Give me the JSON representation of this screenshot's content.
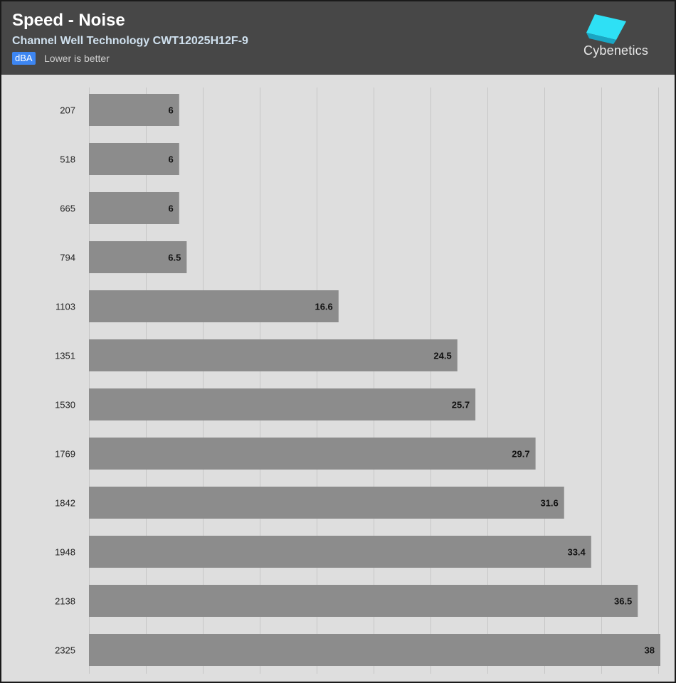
{
  "header": {
    "title": "Speed - Noise",
    "subtitle": "Channel Well Technology CWT12025H12F-9",
    "unit_badge": "dBA",
    "note": "Lower is better",
    "logo_text": "Cybenetics",
    "logo_icon": "cybenetics-logo-icon"
  },
  "colors": {
    "header_bg": "#474747",
    "plot_bg": "#dedede",
    "bar": "#8c8c8c",
    "badge": "#3d86f2",
    "logo_accent": "#2ee0f5"
  },
  "chart_data": {
    "type": "bar",
    "orientation": "horizontal",
    "title": "Speed - Noise",
    "subtitle": "Channel Well Technology CWT12025H12F-9",
    "unit": "dBA",
    "categories": [
      "207",
      "518",
      "665",
      "794",
      "1103",
      "1351",
      "1530",
      "1769",
      "1842",
      "1948",
      "2138",
      "2325"
    ],
    "values": [
      6,
      6,
      6,
      6.5,
      16.6,
      24.5,
      25.7,
      29.7,
      31.6,
      33.4,
      36.5,
      38
    ],
    "value_labels": [
      "6",
      "6",
      "6",
      "6.5",
      "16.6",
      "24.5",
      "25.7",
      "29.7",
      "31.6",
      "33.4",
      "36.5",
      "38"
    ],
    "xlim": [
      0,
      38
    ],
    "grid": true
  }
}
